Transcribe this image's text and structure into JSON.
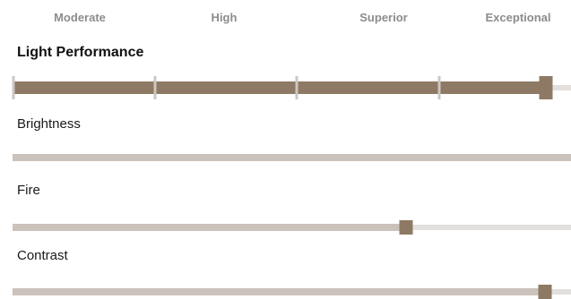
{
  "scale": {
    "labels": [
      "Moderate",
      "High",
      "Superior",
      "Exceptional"
    ]
  },
  "light_performance": {
    "title": "Light Performance",
    "level": 0.955
  },
  "brightness": {
    "label": "Brightness",
    "level": 1.0
  },
  "fire": {
    "label": "Fire",
    "level": 0.705
  },
  "contrast": {
    "label": "Contrast",
    "level": 0.953
  },
  "colors": {
    "fill_strong": "#8e7a64",
    "fill_light": "#cbc2bb",
    "track": "#e2dfdc",
    "tick": "#cdc7c1"
  }
}
